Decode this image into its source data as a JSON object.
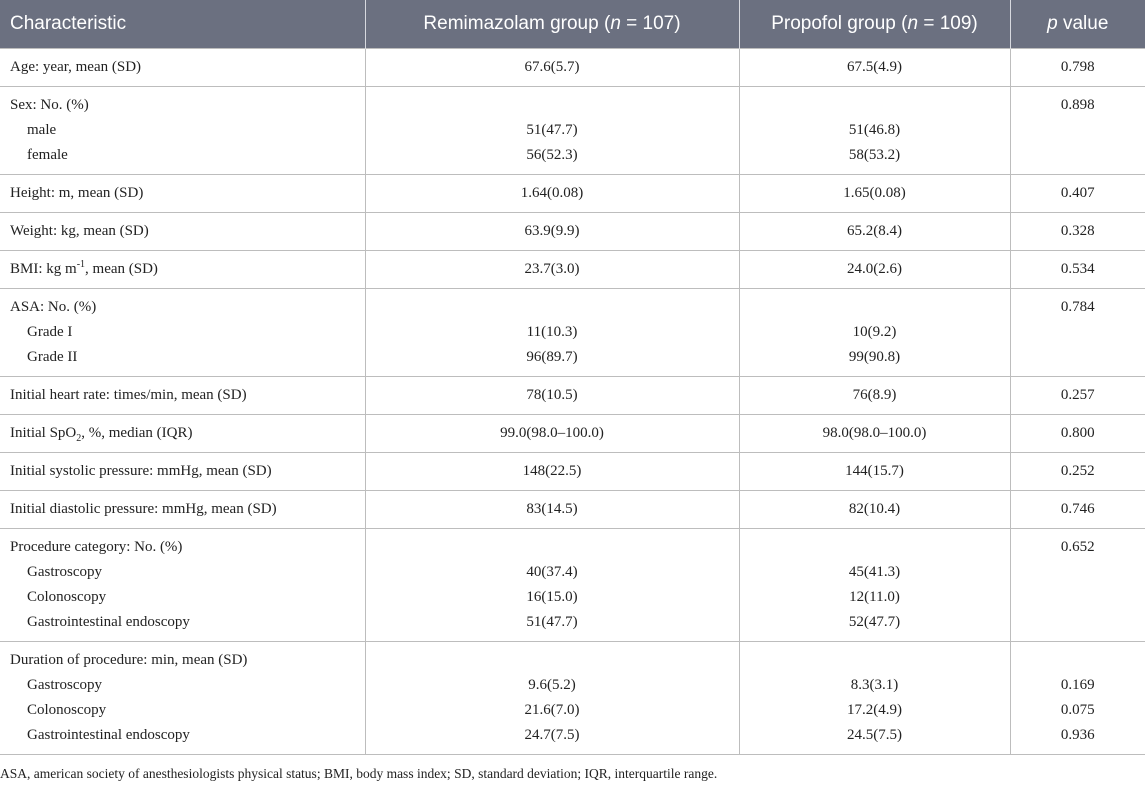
{
  "header": {
    "characteristic": "Characteristic",
    "remimazolam_label": "Remimazolam group (",
    "remimazolam_n_sym": "n",
    "remimazolam_n": " = 107)",
    "propofol_label": "Propofol group (",
    "propofol_n_sym": "n",
    "propofol_n": " = 109)",
    "p_sym": "p",
    "p_label": " value"
  },
  "rows": {
    "age": {
      "label": "Age: year, mean (SD)",
      "remi": "67.6(5.7)",
      "prop": "67.5(4.9)",
      "p": "0.798"
    },
    "sex": {
      "label": "Sex: No. (%)",
      "p": "0.898",
      "male": {
        "label": "male",
        "remi": "51(47.7)",
        "prop": "51(46.8)"
      },
      "female": {
        "label": "female",
        "remi": "56(52.3)",
        "prop": "58(53.2)"
      }
    },
    "height": {
      "label": "Height: m, mean (SD)",
      "remi": "1.64(0.08)",
      "prop": "1.65(0.08)",
      "p": "0.407"
    },
    "weight": {
      "label": "Weight: kg, mean (SD)",
      "remi": "63.9(9.9)",
      "prop": "65.2(8.4)",
      "p": "0.328"
    },
    "bmi": {
      "label_pre": "BMI: kg m",
      "label_sup": "-1",
      "label_post": ", mean (SD)",
      "remi": "23.7(3.0)",
      "prop": "24.0(2.6)",
      "p": "0.534"
    },
    "asa": {
      "label": "ASA: No. (%)",
      "p": "0.784",
      "grade1": {
        "label": "Grade I",
        "remi": "11(10.3)",
        "prop": "10(9.2)"
      },
      "grade2": {
        "label": "Grade II",
        "remi": "96(89.7)",
        "prop": "99(90.8)"
      }
    },
    "hr": {
      "label": "Initial heart rate: times/min, mean (SD)",
      "remi": "78(10.5)",
      "prop": "76(8.9)",
      "p": "0.257"
    },
    "spo2": {
      "label_pre": "Initial SpO",
      "label_sub": "2",
      "label_post": ", %, median (IQR)",
      "remi": "99.0(98.0–100.0)",
      "prop": "98.0(98.0–100.0)",
      "p": "0.800"
    },
    "sbp": {
      "label": "Initial systolic pressure: mmHg, mean (SD)",
      "remi": "148(22.5)",
      "prop": "144(15.7)",
      "p": "0.252"
    },
    "dbp": {
      "label": "Initial diastolic pressure: mmHg, mean (SD)",
      "remi": "83(14.5)",
      "prop": "82(10.4)",
      "p": "0.746"
    },
    "category": {
      "label": "Procedure category: No. (%)",
      "p": "0.652",
      "gastro": {
        "label": "Gastroscopy",
        "remi": "40(37.4)",
        "prop": "45(41.3)"
      },
      "colono": {
        "label": "Colonoscopy",
        "remi": "16(15.0)",
        "prop": "12(11.0)"
      },
      "gi": {
        "label": "Gastrointestinal endoscopy",
        "remi": "51(47.7)",
        "prop": "52(47.7)"
      }
    },
    "duration": {
      "label": "Duration of procedure: min, mean (SD)",
      "gastro": {
        "label": "Gastroscopy",
        "remi": "9.6(5.2)",
        "prop": "8.3(3.1)",
        "p": "0.169"
      },
      "colono": {
        "label": "Colonoscopy",
        "remi": "21.6(7.0)",
        "prop": "17.2(4.9)",
        "p": "0.075"
      },
      "gi": {
        "label": "Gastrointestinal endoscopy",
        "remi": "24.7(7.5)",
        "prop": "24.5(7.5)",
        "p": "0.936"
      }
    }
  },
  "footnote": "ASA, american society of anesthesiologists physical status; BMI, body mass index; SD, standard deviation; IQR, interquartile range."
}
